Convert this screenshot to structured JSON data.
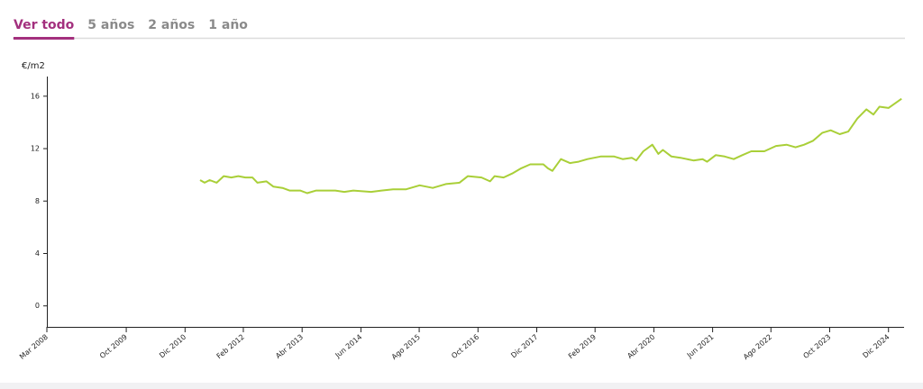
{
  "tabs": [
    "Ver todo",
    "5 años",
    "2 años",
    "1 año"
  ],
  "active_tab": 0,
  "chart_data": {
    "type": "line",
    "y_label": "€/m2",
    "color": "#a9cf38",
    "x": [
      2011.22,
      2011.31,
      2011.41,
      2011.55,
      2011.69,
      2011.84,
      2011.98,
      2012.12,
      2012.26,
      2012.36,
      2012.54,
      2012.68,
      2012.86,
      2013.0,
      2013.21,
      2013.35,
      2013.53,
      2013.91,
      2014.09,
      2014.27,
      2014.62,
      2014.83,
      2015.06,
      2015.32,
      2015.59,
      2015.85,
      2016.11,
      2016.38,
      2016.55,
      2016.82,
      2016.99,
      2017.08,
      2017.26,
      2017.43,
      2017.61,
      2017.79,
      2018.05,
      2018.14,
      2018.23,
      2018.4,
      2018.58,
      2018.75,
      2018.93,
      2019.19,
      2019.46,
      2019.63,
      2019.81,
      2019.9,
      2020.04,
      2020.22,
      2020.34,
      2020.43,
      2020.6,
      2020.78,
      2021.04,
      2021.22,
      2021.31,
      2021.48,
      2021.66,
      2021.84,
      2022.01,
      2022.19,
      2022.45,
      2022.68,
      2022.89,
      2023.07,
      2023.24,
      2023.42,
      2023.6,
      2023.77,
      2023.95,
      2024.12,
      2024.3,
      2024.48,
      2024.62,
      2024.74,
      2024.92,
      2025.18
    ],
    "values": [
      9.6,
      9.4,
      9.6,
      9.4,
      9.9,
      9.8,
      9.9,
      9.8,
      9.8,
      9.4,
      9.5,
      9.1,
      9.0,
      8.8,
      8.8,
      8.6,
      8.8,
      8.8,
      8.7,
      8.8,
      8.7,
      8.8,
      8.9,
      8.9,
      9.2,
      9.0,
      9.3,
      9.4,
      9.9,
      9.8,
      9.5,
      9.9,
      9.8,
      10.1,
      10.5,
      10.8,
      10.8,
      10.5,
      10.3,
      11.2,
      10.9,
      11.0,
      11.2,
      11.4,
      11.4,
      11.2,
      11.3,
      11.1,
      11.8,
      12.3,
      11.6,
      11.9,
      11.4,
      11.3,
      11.1,
      11.2,
      11.0,
      11.5,
      11.4,
      11.2,
      11.5,
      11.8,
      11.8,
      12.2,
      12.3,
      12.1,
      12.3,
      12.6,
      13.2,
      13.4,
      13.1,
      13.3,
      14.3,
      15.0,
      14.6,
      15.2,
      15.1,
      15.8
    ],
    "xlim": [
      2008.17,
      2025.23
    ],
    "xticks": [
      {
        "value": 2008.17,
        "label": "Mar 2008"
      },
      {
        "value": 2009.75,
        "label": "Oct 2009"
      },
      {
        "value": 2010.92,
        "label": "Dic 2010"
      },
      {
        "value": 2012.08,
        "label": "Feb 2012"
      },
      {
        "value": 2013.25,
        "label": "Abr 2013"
      },
      {
        "value": 2014.42,
        "label": "Jun 2014"
      },
      {
        "value": 2015.58,
        "label": "Ago 2015"
      },
      {
        "value": 2016.75,
        "label": "Oct 2016"
      },
      {
        "value": 2017.92,
        "label": "Dic 2017"
      },
      {
        "value": 2019.08,
        "label": "Feb 2019"
      },
      {
        "value": 2020.25,
        "label": "Abr 2020"
      },
      {
        "value": 2021.42,
        "label": "Jun 2021"
      },
      {
        "value": 2022.58,
        "label": "Ago 2022"
      },
      {
        "value": 2023.75,
        "label": "Oct 2023"
      },
      {
        "value": 2024.92,
        "label": "Dic 2024"
      }
    ],
    "ylim": [
      -1.6,
      17.5
    ],
    "yticks": [
      0,
      4,
      8,
      12,
      16
    ]
  }
}
